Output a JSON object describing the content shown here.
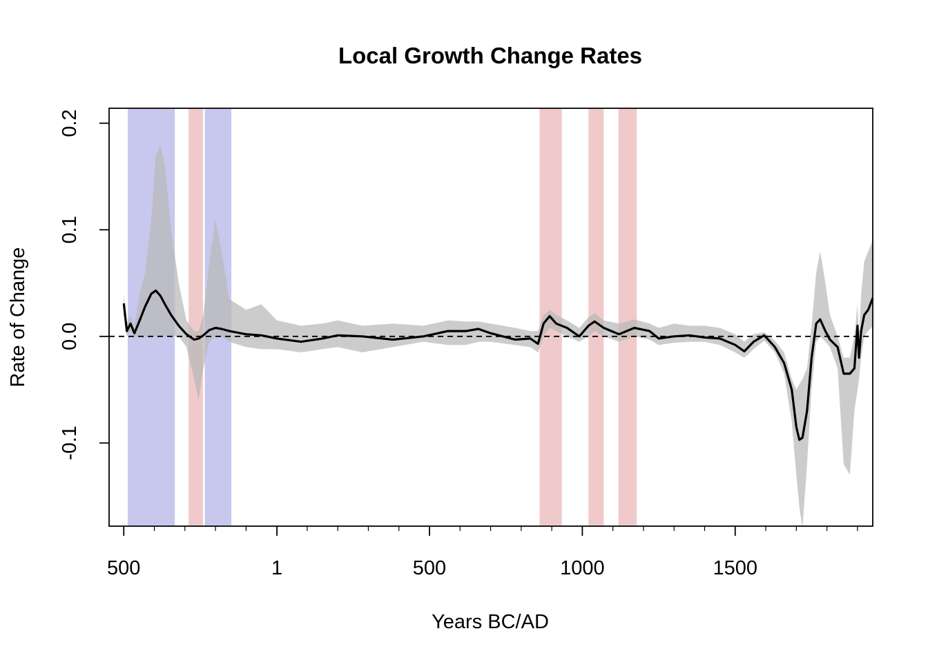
{
  "chart_data": {
    "type": "line",
    "title": "Local Growth Change Rates",
    "xlabel": "Years BC/AD",
    "ylabel": "Rate of Change",
    "x_axis": "calendar year, negative = BC",
    "xlim": [
      -548,
      1950
    ],
    "ylim": [
      -0.178,
      0.214
    ],
    "x_ticks": [
      {
        "value": -500,
        "label": "500"
      },
      {
        "value": 1,
        "label": "1"
      },
      {
        "value": 500,
        "label": "500"
      },
      {
        "value": 1000,
        "label": "1000"
      },
      {
        "value": 1500,
        "label": "1500"
      }
    ],
    "y_ticks": [
      {
        "value": 0.2,
        "label": "0.2"
      },
      {
        "value": 0.1,
        "label": "0.1"
      },
      {
        "value": 0.0,
        "label": "0.0"
      },
      {
        "value": -0.1,
        "label": "-0.1"
      }
    ],
    "reference_line": {
      "y": 0,
      "style": "dashed"
    },
    "shaded_periods": [
      {
        "start": -487,
        "end": -333,
        "color": "#c8c8ee"
      },
      {
        "start": -288,
        "end": -241,
        "color": "#f0caca"
      },
      {
        "start": -235,
        "end": -148,
        "color": "#c8c8ee"
      },
      {
        "start": 860,
        "end": 933,
        "color": "#f0caca"
      },
      {
        "start": 1020,
        "end": 1070,
        "color": "#f0caca"
      },
      {
        "start": 1118,
        "end": 1178,
        "color": "#f0caca"
      }
    ],
    "band_color": "#b8b8b8",
    "line_color": "#000000",
    "series": [
      {
        "values": [
          {
            "x": -500,
            "y": 0.031,
            "lo": 0.02,
            "hi": 0.04
          },
          {
            "x": -490,
            "y": 0.005,
            "lo": 0.0,
            "hi": 0.012
          },
          {
            "x": -478,
            "y": 0.012,
            "lo": 0.005,
            "hi": 0.02
          },
          {
            "x": -465,
            "y": 0.003,
            "lo": 0.0,
            "hi": 0.01
          },
          {
            "x": -448,
            "y": 0.015,
            "lo": 0.0,
            "hi": 0.04
          },
          {
            "x": -430,
            "y": 0.028,
            "lo": 0.0,
            "hi": 0.06
          },
          {
            "x": -410,
            "y": 0.04,
            "lo": 0.0,
            "hi": 0.11
          },
          {
            "x": -395,
            "y": 0.043,
            "lo": 0.0,
            "hi": 0.17
          },
          {
            "x": -380,
            "y": 0.038,
            "lo": 0.0,
            "hi": 0.18
          },
          {
            "x": -365,
            "y": 0.03,
            "lo": 0.0,
            "hi": 0.16
          },
          {
            "x": -345,
            "y": 0.02,
            "lo": 0.0,
            "hi": 0.1
          },
          {
            "x": -320,
            "y": 0.01,
            "lo": 0.0,
            "hi": 0.05
          },
          {
            "x": -295,
            "y": 0.002,
            "lo": -0.01,
            "hi": 0.015
          },
          {
            "x": -270,
            "y": -0.003,
            "lo": -0.04,
            "hi": 0.005
          },
          {
            "x": -255,
            "y": -0.002,
            "lo": -0.06,
            "hi": 0.005
          },
          {
            "x": -240,
            "y": 0.001,
            "lo": -0.03,
            "hi": 0.02
          },
          {
            "x": -220,
            "y": 0.006,
            "lo": -0.005,
            "hi": 0.07
          },
          {
            "x": -200,
            "y": 0.008,
            "lo": 0.0,
            "hi": 0.11
          },
          {
            "x": -180,
            "y": 0.007,
            "lo": 0.0,
            "hi": 0.08
          },
          {
            "x": -155,
            "y": 0.005,
            "lo": -0.005,
            "hi": 0.035
          },
          {
            "x": -100,
            "y": 0.002,
            "lo": -0.01,
            "hi": 0.025
          },
          {
            "x": -50,
            "y": 0.001,
            "lo": -0.012,
            "hi": 0.03
          },
          {
            "x": 1,
            "y": -0.002,
            "lo": -0.012,
            "hi": 0.015
          },
          {
            "x": 80,
            "y": -0.005,
            "lo": -0.015,
            "hi": 0.01
          },
          {
            "x": 150,
            "y": -0.002,
            "lo": -0.012,
            "hi": 0.012
          },
          {
            "x": 200,
            "y": 0.001,
            "lo": -0.01,
            "hi": 0.015
          },
          {
            "x": 280,
            "y": 0.0,
            "lo": -0.015,
            "hi": 0.01
          },
          {
            "x": 380,
            "y": -0.003,
            "lo": -0.01,
            "hi": 0.012
          },
          {
            "x": 480,
            "y": 0.0,
            "lo": -0.005,
            "hi": 0.01
          },
          {
            "x": 560,
            "y": 0.005,
            "lo": -0.008,
            "hi": 0.015
          },
          {
            "x": 620,
            "y": 0.005,
            "lo": -0.008,
            "hi": 0.014
          },
          {
            "x": 660,
            "y": 0.007,
            "lo": -0.005,
            "hi": 0.014
          },
          {
            "x": 700,
            "y": 0.003,
            "lo": -0.005,
            "hi": 0.012
          },
          {
            "x": 780,
            "y": -0.003,
            "lo": -0.008,
            "hi": 0.008
          },
          {
            "x": 830,
            "y": -0.002,
            "lo": -0.01,
            "hi": 0.005
          },
          {
            "x": 855,
            "y": -0.007,
            "lo": -0.015,
            "hi": 0.005
          },
          {
            "x": 873,
            "y": 0.012,
            "lo": 0.0,
            "hi": 0.02
          },
          {
            "x": 893,
            "y": 0.019,
            "lo": 0.008,
            "hi": 0.025
          },
          {
            "x": 915,
            "y": 0.012,
            "lo": 0.005,
            "hi": 0.02
          },
          {
            "x": 950,
            "y": 0.008,
            "lo": 0.0,
            "hi": 0.015
          },
          {
            "x": 990,
            "y": 0.0,
            "lo": -0.005,
            "hi": 0.008
          },
          {
            "x": 1020,
            "y": 0.01,
            "lo": 0.0,
            "hi": 0.018
          },
          {
            "x": 1040,
            "y": 0.014,
            "lo": 0.005,
            "hi": 0.022
          },
          {
            "x": 1070,
            "y": 0.008,
            "lo": 0.0,
            "hi": 0.015
          },
          {
            "x": 1120,
            "y": 0.002,
            "lo": -0.005,
            "hi": 0.012
          },
          {
            "x": 1170,
            "y": 0.008,
            "lo": 0.0,
            "hi": 0.016
          },
          {
            "x": 1220,
            "y": 0.005,
            "lo": -0.003,
            "hi": 0.012
          },
          {
            "x": 1250,
            "y": -0.002,
            "lo": -0.008,
            "hi": 0.008
          },
          {
            "x": 1300,
            "y": 0.0,
            "lo": -0.006,
            "hi": 0.012
          },
          {
            "x": 1350,
            "y": 0.001,
            "lo": -0.005,
            "hi": 0.01
          },
          {
            "x": 1400,
            "y": -0.001,
            "lo": -0.005,
            "hi": 0.01
          },
          {
            "x": 1450,
            "y": -0.002,
            "lo": -0.008,
            "hi": 0.008
          },
          {
            "x": 1500,
            "y": -0.008,
            "lo": -0.015,
            "hi": 0.002
          },
          {
            "x": 1530,
            "y": -0.014,
            "lo": -0.02,
            "hi": -0.005
          },
          {
            "x": 1560,
            "y": -0.005,
            "lo": -0.012,
            "hi": 0.002
          },
          {
            "x": 1595,
            "y": 0.001,
            "lo": -0.004,
            "hi": 0.004
          },
          {
            "x": 1630,
            "y": -0.01,
            "lo": -0.015,
            "hi": -0.004
          },
          {
            "x": 1660,
            "y": -0.025,
            "lo": -0.035,
            "hi": -0.015
          },
          {
            "x": 1685,
            "y": -0.05,
            "lo": -0.08,
            "hi": -0.04
          },
          {
            "x": 1700,
            "y": -0.085,
            "lo": -0.13,
            "hi": -0.05
          },
          {
            "x": 1710,
            "y": -0.097,
            "lo": -0.16,
            "hi": -0.045
          },
          {
            "x": 1720,
            "y": -0.095,
            "lo": -0.18,
            "hi": -0.04
          },
          {
            "x": 1735,
            "y": -0.07,
            "lo": -0.12,
            "hi": -0.03
          },
          {
            "x": 1750,
            "y": -0.02,
            "lo": -0.05,
            "hi": 0.01
          },
          {
            "x": 1765,
            "y": 0.012,
            "lo": -0.005,
            "hi": 0.06
          },
          {
            "x": 1778,
            "y": 0.016,
            "lo": 0.0,
            "hi": 0.08
          },
          {
            "x": 1795,
            "y": 0.005,
            "lo": -0.005,
            "hi": 0.05
          },
          {
            "x": 1810,
            "y": -0.003,
            "lo": -0.01,
            "hi": 0.02
          },
          {
            "x": 1835,
            "y": -0.01,
            "lo": -0.03,
            "hi": 0.0
          },
          {
            "x": 1855,
            "y": -0.035,
            "lo": -0.12,
            "hi": -0.02
          },
          {
            "x": 1875,
            "y": -0.035,
            "lo": -0.13,
            "hi": -0.02
          },
          {
            "x": 1890,
            "y": -0.03,
            "lo": -0.07,
            "hi": 0.0
          },
          {
            "x": 1900,
            "y": 0.01,
            "lo": -0.05,
            "hi": 0.03
          },
          {
            "x": 1905,
            "y": -0.02,
            "lo": -0.04,
            "hi": 0.0
          },
          {
            "x": 1912,
            "y": 0.005,
            "lo": -0.02,
            "hi": 0.04
          },
          {
            "x": 1922,
            "y": 0.02,
            "lo": 0.0,
            "hi": 0.07
          },
          {
            "x": 1935,
            "y": 0.025,
            "lo": 0.005,
            "hi": 0.08
          },
          {
            "x": 1950,
            "y": 0.036,
            "lo": 0.01,
            "hi": 0.09
          }
        ]
      }
    ]
  }
}
